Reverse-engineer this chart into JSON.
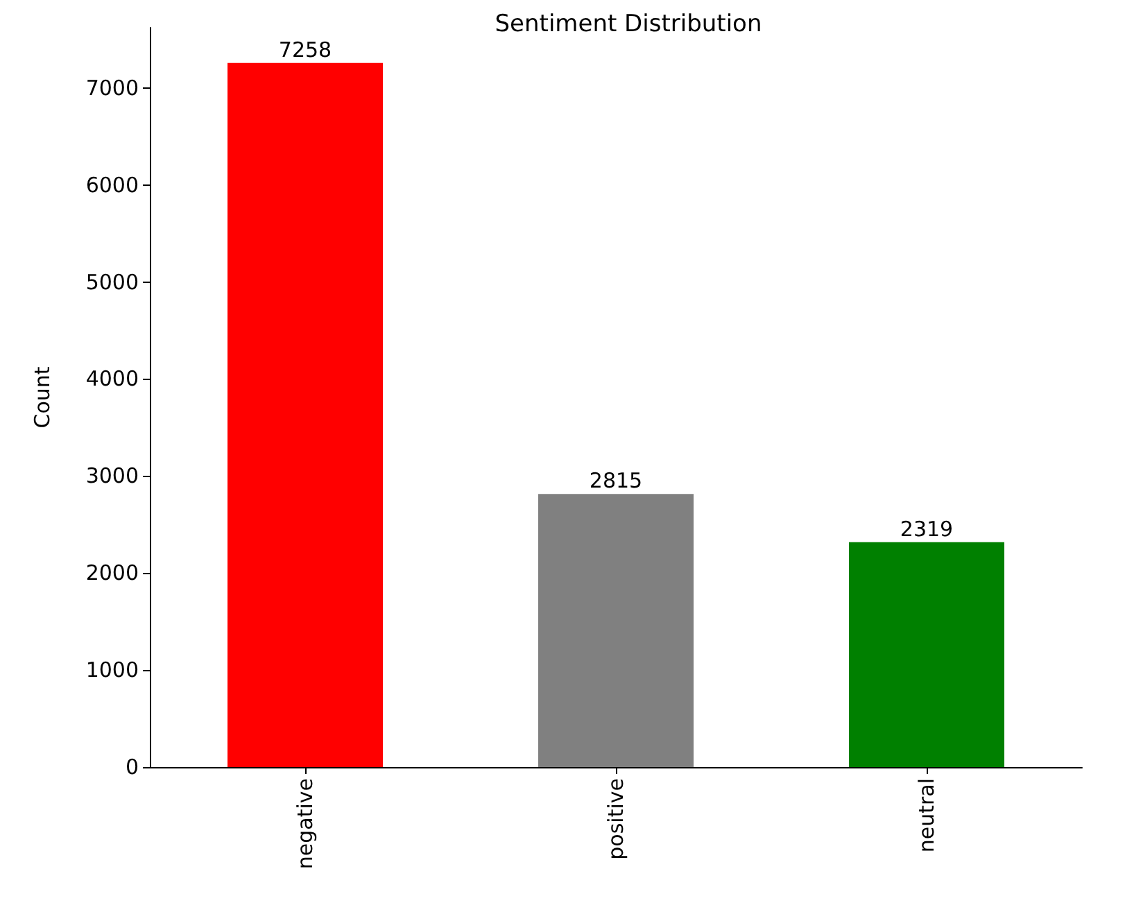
{
  "chart_data": {
    "type": "bar",
    "title": "Sentiment Distribution",
    "ylabel": "Count",
    "categories": [
      "negative",
      "positive",
      "neutral"
    ],
    "values": [
      7258,
      2815,
      2319
    ],
    "colors": [
      "#ff0000",
      "#808080",
      "#008000"
    ],
    "ylim": [
      0,
      7621
    ],
    "yticks": [
      0,
      1000,
      2000,
      3000,
      4000,
      5000,
      6000,
      7000
    ],
    "data_labels": true,
    "grid": false
  }
}
